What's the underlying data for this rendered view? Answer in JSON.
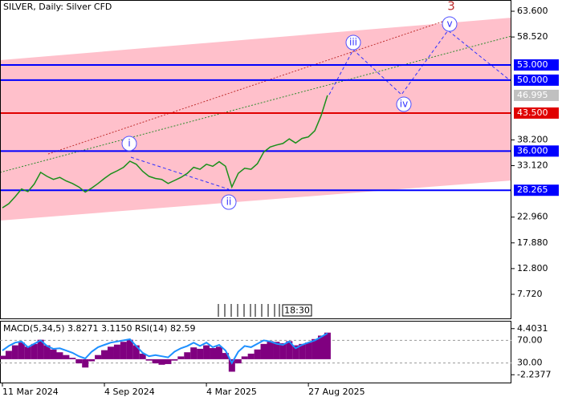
{
  "chart_data": [
    {
      "type": "line",
      "title": "SILVER, Daily:  Silver CFD",
      "categories": [
        "11 Mar 2024",
        null,
        null,
        null,
        null,
        null,
        null,
        null,
        null,
        null,
        null,
        null,
        null,
        null,
        null,
        null,
        "4 Sep 2024",
        null,
        null,
        null,
        null,
        null,
        null,
        null,
        null,
        null,
        null,
        null,
        null,
        null,
        null,
        null,
        "4 Mar 2025",
        null,
        null,
        null,
        null,
        null,
        null,
        null,
        null,
        null,
        null,
        null,
        null,
        null,
        null,
        null,
        "27 Aug 2025",
        null,
        null,
        null
      ],
      "values": [
        24.8,
        25.6,
        27.0,
        28.5,
        28.0,
        29.5,
        31.8,
        31.0,
        30.4,
        30.8,
        30.1,
        29.6,
        28.9,
        27.9,
        28.7,
        29.6,
        30.6,
        31.5,
        32.1,
        32.8,
        34.0,
        33.4,
        32.0,
        31.0,
        30.6,
        30.4,
        29.6,
        30.2,
        30.8,
        31.6,
        32.8,
        32.4,
        33.4,
        33.0,
        33.9,
        33.0,
        28.9,
        31.6,
        32.6,
        32.4,
        33.5,
        35.8,
        36.8,
        37.2,
        37.5,
        38.4,
        37.6,
        38.5,
        38.8,
        40.0,
        43.0,
        46.995
      ],
      "color": "#1a8f1a",
      "ylim": [
        2.81,
        65.82
      ],
      "yticks": [
        {
          "value": 63.6,
          "label": "63.600"
        },
        {
          "value": 58.52,
          "label": "58.520"
        },
        {
          "value": 38.2,
          "label": "38.200"
        },
        {
          "value": 33.12,
          "label": "33.120"
        },
        {
          "value": 22.96,
          "label": "22.960"
        },
        {
          "value": 17.88,
          "label": "17.880"
        },
        {
          "value": 12.8,
          "label": "12.800"
        },
        {
          "value": 7.72,
          "label": "7.720"
        }
      ],
      "levels": [
        {
          "value": 53,
          "label": "53.000",
          "color": "#0000ff"
        },
        {
          "value": 50,
          "label": "50.000",
          "color": "#0000ff"
        },
        {
          "value": 43.5,
          "label": "43.500",
          "color": "#e00000"
        },
        {
          "value": 36,
          "label": "36.000",
          "color": "#0000ff"
        },
        {
          "value": 28.265,
          "label": "28.265",
          "color": "#0000ff"
        }
      ],
      "current_price": 46.995,
      "annotations": [
        "i",
        "ii",
        "iii",
        "iv",
        "v",
        "3"
      ],
      "time_label": "18:30"
    },
    {
      "type": "macd",
      "title": "MACD(5,34,5) 3.8271 3.1150 RSI(14) 82.59",
      "series": [
        {
          "color": "#800080",
          "values": [
            0.5,
            1.2,
            2.0,
            2.4,
            1.8,
            2.2,
            2.8,
            2.0,
            1.4,
            1.0,
            0.6,
            0.2,
            -0.6,
            -1.2,
            -0.3,
            0.6,
            1.3,
            1.8,
            2.1,
            2.5,
            2.8,
            2.0,
            0.8,
            -0.2,
            -0.6,
            -0.8,
            -0.7,
            -0.2,
            0.4,
            1.0,
            1.7,
            1.5,
            2.0,
            1.6,
            1.8,
            0.9,
            -1.8,
            -0.6,
            0.4,
            0.8,
            1.4,
            2.2,
            2.6,
            2.5,
            2.3,
            2.6,
            2.0,
            2.2,
            2.4,
            2.9,
            3.4,
            3.8271
          ]
        },
        {
          "color": "#1e90ff",
          "axis": "y2",
          "values": [
            52,
            60,
            66,
            68,
            58,
            64,
            70,
            60,
            55,
            56,
            52,
            48,
            42,
            38,
            50,
            58,
            62,
            66,
            68,
            70,
            72,
            60,
            48,
            42,
            44,
            42,
            40,
            50,
            56,
            60,
            66,
            60,
            66,
            58,
            62,
            52,
            30,
            50,
            60,
            58,
            64,
            70,
            68,
            64,
            62,
            68,
            56,
            62,
            66,
            70,
            76,
            82.59
          ]
        }
      ],
      "ylim": [
        -3.363,
        5.416
      ],
      "yticks": [
        4.4031,
        -2.2377
      ],
      "y2lim": [
        -4.48,
        103.1
      ],
      "y2ticks": [
        {
          "value": 70,
          "label": "70.00"
        },
        {
          "value": 30,
          "label": "30.00"
        }
      ]
    }
  ]
}
